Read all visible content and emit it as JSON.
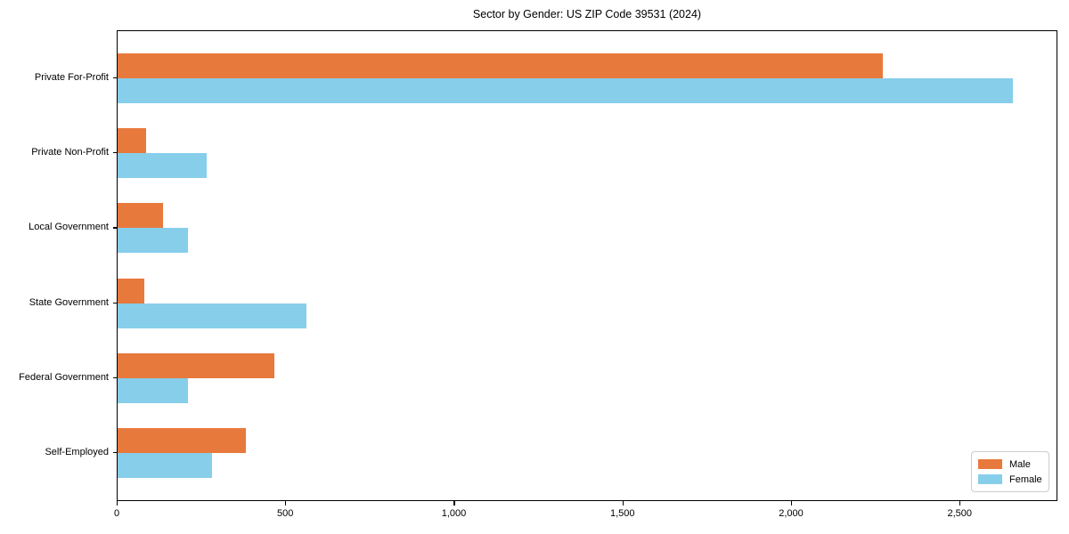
{
  "chart_data": {
    "type": "bar",
    "orientation": "horizontal",
    "title": "Sector by Gender: US ZIP Code 39531 (2024)",
    "categories": [
      "Private For-Profit",
      "Private Non-Profit",
      "Local Government",
      "State Government",
      "Federal Government",
      "Self-Employed"
    ],
    "series": [
      {
        "name": "Male",
        "color": "#E8793D",
        "values": [
          2270,
          85,
          135,
          80,
          465,
          380
        ]
      },
      {
        "name": "Female",
        "color": "#87CEEB",
        "values": [
          2655,
          265,
          210,
          560,
          210,
          280
        ]
      }
    ],
    "xlabel": "",
    "ylabel": "",
    "xlim": [
      0,
      2790
    ],
    "xticks": {
      "values": [
        0,
        500,
        1000,
        1500,
        2000,
        2500
      ],
      "labels": [
        "0",
        "500",
        "1,000",
        "1,500",
        "2,000",
        "2,500"
      ]
    },
    "grid": false,
    "legend": {
      "position": "lower right",
      "entries": [
        "Male",
        "Female"
      ]
    }
  }
}
